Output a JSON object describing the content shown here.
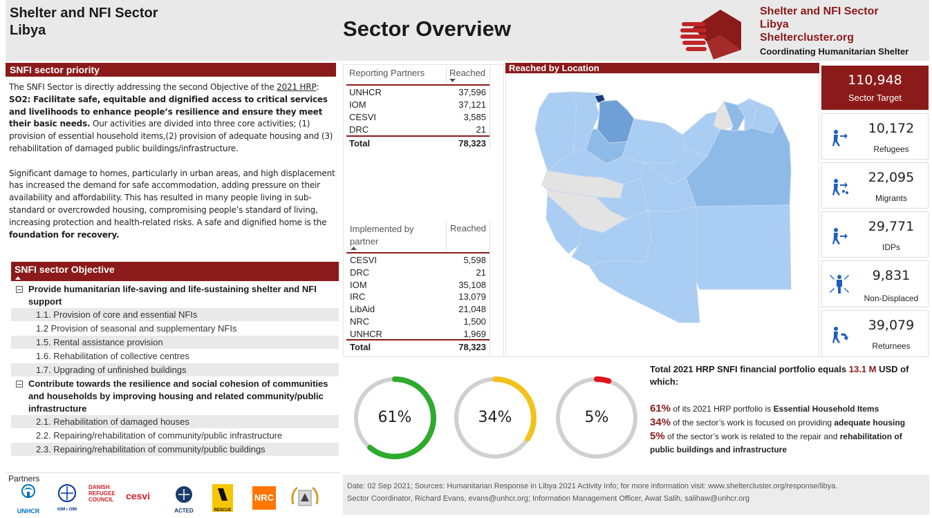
{
  "header": {
    "left_line1": "Shelter and NFI Sector",
    "left_line2": "Libya",
    "title": "Sector Overview",
    "right_line1": "Shelter and NFI Sector",
    "right_line2": "Libya",
    "right_line3": "Sheltercluster.org",
    "right_line4": "Coordinating Humanitarian Shelter"
  },
  "priority": {
    "title": "SNFI sector priority",
    "p1_a": "The SNFI Sector is directly addressing the second Objective of the ",
    "p1_link": "2021 HRP",
    "p1_b": ":  ",
    "p1_bold": "SO2: Facilitate safe, equitable and dignified access to critical services and livelihoods to enhance people’s resilience and ensure they meet their basic needs.",
    "p1_c": "  Our activities are divided into three core activities; (1) provision of essential household items,(2) provision of adequate housing and (3) rehabilitation of damaged public buildings/infrastructure.",
    "p2_a": "Significant damage to homes, particularly in urban areas, and high displacement has increased the demand for safe accommodation, adding pressure on their availability and affordability. This has resulted in many people living in sub-standard or overcrowded housing, compromising people’s standard of living, increasing protection and health-related risks.  A safe and dignified home is the ",
    "p2_bold": "foundation for recovery."
  },
  "objective": {
    "title": "SNFI sector Objective",
    "groups": [
      {
        "heading": "Provide humanitarian life-saving and life-sustaining shelter and NFI support",
        "items": [
          "1.1. Provision of core and essential NFIs",
          "1.2 Provision of seasonal and supplementary NFIs",
          "1.5. Rental assistance provision",
          "1.6. Rehabilitation of collective centres",
          "1.7. Upgrading of unfinished buildings"
        ]
      },
      {
        "heading": "Contribute towards the resilience and social cohesion of communities and households by improving housing and related community/public infrastructure",
        "items": [
          "2.1. Rehabilitation of damaged houses",
          "2.2. Repairing/rehabilitation of community/public infrastructure",
          "2.3. Repairing/rehabilitation of community/public buildings"
        ]
      }
    ]
  },
  "reporting_table": {
    "col1": "Reporting Partners",
    "col2": "Reached",
    "rows": [
      {
        "name": "UNHCR",
        "value": "37,596"
      },
      {
        "name": "IOM",
        "value": "37,121"
      },
      {
        "name": "CESVI",
        "value": "3,585"
      },
      {
        "name": "DRC",
        "value": "21"
      }
    ],
    "total_label": "Total",
    "total_value": "78,323"
  },
  "implemented_table": {
    "col1_line1": "Implemented by",
    "col1_line2": "partner",
    "col2": "Reached",
    "rows": [
      {
        "name": "CESVI",
        "value": "5,598"
      },
      {
        "name": "DRC",
        "value": "21"
      },
      {
        "name": "IOM",
        "value": "35,108"
      },
      {
        "name": "IRC",
        "value": "13,079"
      },
      {
        "name": "LibAid",
        "value": "21,048"
      },
      {
        "name": "NRC",
        "value": "1,500"
      },
      {
        "name": "UNHCR",
        "value": "1,969"
      }
    ],
    "total_label": "Total",
    "total_value": "78,323"
  },
  "map": {
    "title": "Reached by Location"
  },
  "kpis": {
    "target_value": "110,948",
    "target_label": "Sector Target",
    "items": [
      {
        "value": "10,172",
        "label": "Refugees",
        "icon": "refugee-icon"
      },
      {
        "value": "22,095",
        "label": "Migrants",
        "icon": "migrant-icon"
      },
      {
        "value": "29,771",
        "label": "IDPs",
        "icon": "idp-icon"
      },
      {
        "value": "9,831",
        "label": "Non-Displaced",
        "icon": "non-displaced-icon"
      },
      {
        "value": "39,079",
        "label": "Returnees",
        "icon": "returnee-icon"
      }
    ]
  },
  "donuts": [
    {
      "label": "61%",
      "fraction": 0.61,
      "color": "#2eaa2e"
    },
    {
      "label": "34%",
      "fraction": 0.34,
      "color": "#f2c21b"
    },
    {
      "label": "5%",
      "fraction": 0.05,
      "color": "#e0141e"
    }
  ],
  "financial": {
    "head_a": "Total 2021 HRP SNFI financial portfolio equals ",
    "head_amount": "13.1 M",
    "head_b": " USD of which:",
    "l1_pct": "61%",
    "l1_text": " of its 2021 HRP portfolio is ",
    "l1_bold": "Essential Household Items",
    "l2_pct": "34%",
    "l2_text": " of the sector’s work is focused on providing ",
    "l2_bold": "adequate housing",
    "l3_pct": "5%",
    "l3_text": " of the sector’s work is related to the repair and ",
    "l3_bold": "rehabilitation of public buildings and infrastructure"
  },
  "footer": {
    "partners_label": "Partners",
    "partners": [
      "UNHCR",
      "IOM • OIM",
      "DANISH REFUGEE COUNCIL",
      "cesvi",
      "ACTED",
      "RESCUE",
      "NRC"
    ],
    "note_line1": "Date: 02 Sep 2021; Sources: Humanitarian Response in Libya 2021 Activity Info; for more information visit: www.sheltercluster.org/response/libya.",
    "note_line2": "Sector Coordinator, Richard Evans, evans@unhcr.org; Information Management Officer, Awat Salih, salihaw@unhcr.org"
  },
  "colors": {
    "accent": "#8b1a1a",
    "kpi_icon": "#1f5fbf",
    "map_light": "#a9cdf3",
    "map_mid": "#8ebae8",
    "map_dark": "#6e9fd6",
    "map_grey": "#e3e3e3"
  }
}
